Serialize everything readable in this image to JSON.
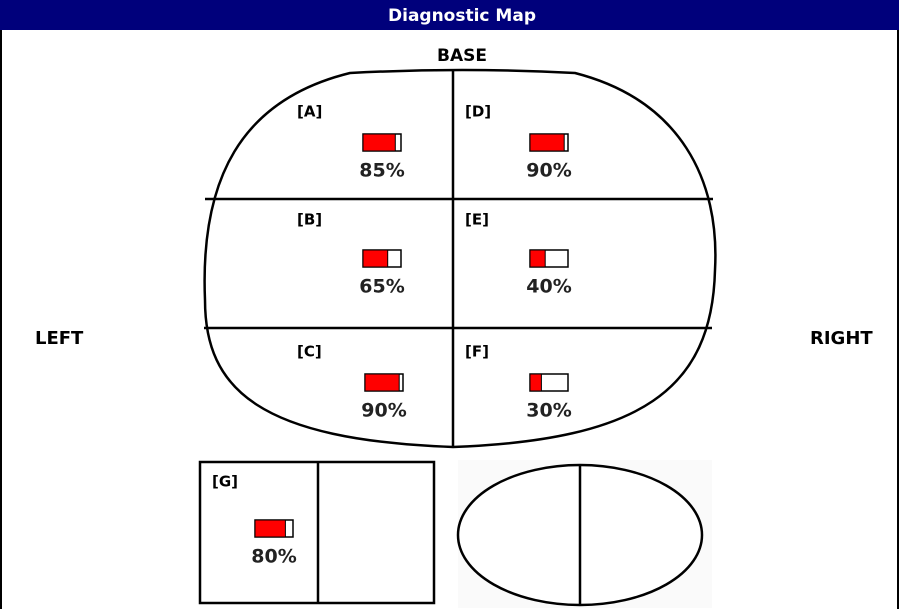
{
  "header": {
    "title": "Diagnostic Map"
  },
  "orientation": {
    "top": "BASE",
    "left": "LEFT",
    "right": "RIGHT"
  },
  "bar_range": [
    0,
    100
  ],
  "regions": [
    {
      "label": "[A]",
      "value": 85,
      "value_label": "85%"
    },
    {
      "label": "[D]",
      "value": 90,
      "value_label": "90%"
    },
    {
      "label": "[B]",
      "value": 65,
      "value_label": "65%"
    },
    {
      "label": "[E]",
      "value": 40,
      "value_label": "40%"
    },
    {
      "label": "[C]",
      "value": 90,
      "value_label": "90%"
    },
    {
      "label": "[F]",
      "value": 30,
      "value_label": "30%"
    },
    {
      "label": "[G]",
      "value": 80,
      "value_label": "80%"
    }
  ]
}
